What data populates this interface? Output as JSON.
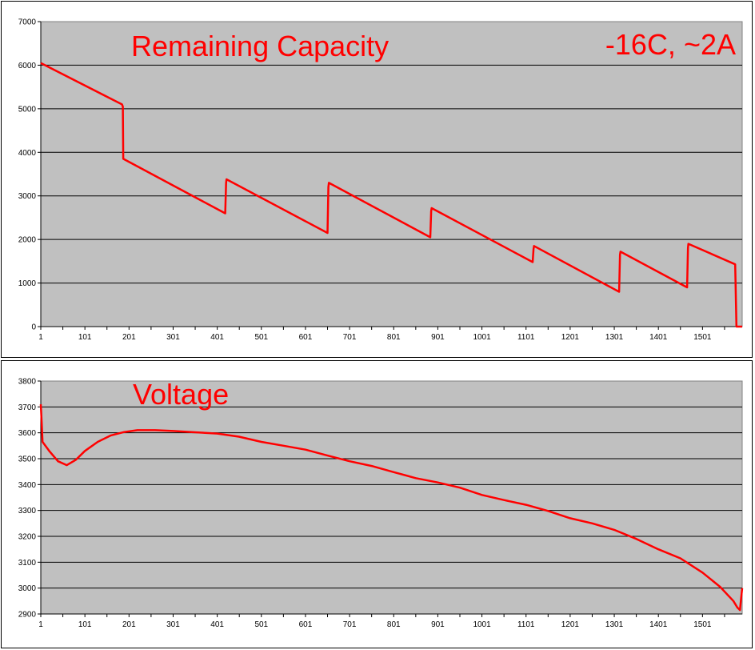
{
  "charts": [
    {
      "type": "line",
      "title": "Remaining Capacity",
      "annotation": "-16C, ~2A",
      "x_tick_labels": [
        "1",
        "101",
        "201",
        "301",
        "401",
        "501",
        "601",
        "701",
        "801",
        "901",
        "1001",
        "1101",
        "1201",
        "1301",
        "1401",
        "1501"
      ],
      "x_ticks": [
        1,
        101,
        201,
        301,
        401,
        501,
        601,
        701,
        801,
        901,
        1001,
        1101,
        1201,
        1301,
        1401,
        1501
      ],
      "xlim": [
        1,
        1591
      ],
      "ylim": [
        0,
        7000
      ],
      "y_ticks": [
        0,
        1000,
        2000,
        3000,
        4000,
        5000,
        6000,
        7000
      ],
      "y_tick_labels": [
        "0",
        "1000",
        "2000",
        "3000",
        "4000",
        "5000",
        "6000",
        "7000"
      ],
      "grid": true,
      "colors": {
        "line": "#ff0000",
        "plot_bg": "#c0c0c0",
        "grid": "#000000"
      },
      "series": [
        {
          "x": [
            1,
            185,
            187,
            188,
            419,
            421,
            422,
            651,
            653,
            654,
            884,
            886,
            887,
            1116,
            1118,
            1119,
            1312,
            1314,
            1315,
            1466,
            1468,
            1469,
            1575,
            1576,
            1578,
            1591
          ],
          "y": [
            6050,
            5100,
            5050,
            3850,
            2600,
            3300,
            3380,
            2150,
            3200,
            3300,
            2050,
            2650,
            2720,
            1480,
            1780,
            1850,
            800,
            1650,
            1720,
            900,
            1800,
            1900,
            1430,
            1000,
            0,
            0
          ]
        }
      ]
    },
    {
      "type": "line",
      "title": "Voltage",
      "x_tick_labels": [
        "1",
        "101",
        "201",
        "301",
        "401",
        "501",
        "601",
        "701",
        "801",
        "901",
        "1001",
        "1101",
        "1201",
        "1301",
        "1401",
        "1501"
      ],
      "x_ticks": [
        1,
        101,
        201,
        301,
        401,
        501,
        601,
        701,
        801,
        901,
        1001,
        1101,
        1201,
        1301,
        1401,
        1501
      ],
      "xlim": [
        1,
        1591
      ],
      "ylim": [
        2900,
        3800
      ],
      "y_ticks": [
        2900,
        3000,
        3100,
        3200,
        3300,
        3400,
        3500,
        3600,
        3700,
        3800
      ],
      "y_tick_labels": [
        "2900",
        "3000",
        "3100",
        "3200",
        "3300",
        "3400",
        "3500",
        "3600",
        "3700",
        "3800"
      ],
      "grid": true,
      "colors": {
        "line": "#ff0000",
        "plot_bg": "#c0c0c0",
        "grid": "#000000"
      },
      "series": [
        {
          "x": [
            1,
            3,
            5,
            20,
            40,
            60,
            80,
            101,
            130,
            160,
            190,
            220,
            260,
            301,
            350,
            401,
            450,
            501,
            551,
            601,
            651,
            701,
            751,
            801,
            851,
            901,
            951,
            1001,
            1051,
            1101,
            1151,
            1201,
            1251,
            1301,
            1351,
            1401,
            1451,
            1501,
            1541,
            1571,
            1580,
            1586,
            1588,
            1591
          ],
          "y": [
            3710,
            3640,
            3565,
            3530,
            3490,
            3475,
            3495,
            3530,
            3565,
            3590,
            3603,
            3610,
            3610,
            3607,
            3602,
            3597,
            3585,
            3565,
            3550,
            3535,
            3512,
            3490,
            3472,
            3448,
            3425,
            3408,
            3388,
            3360,
            3340,
            3322,
            3298,
            3270,
            3250,
            3225,
            3190,
            3150,
            3115,
            3060,
            3005,
            2950,
            2925,
            2915,
            2950,
            3000
          ]
        }
      ]
    }
  ]
}
